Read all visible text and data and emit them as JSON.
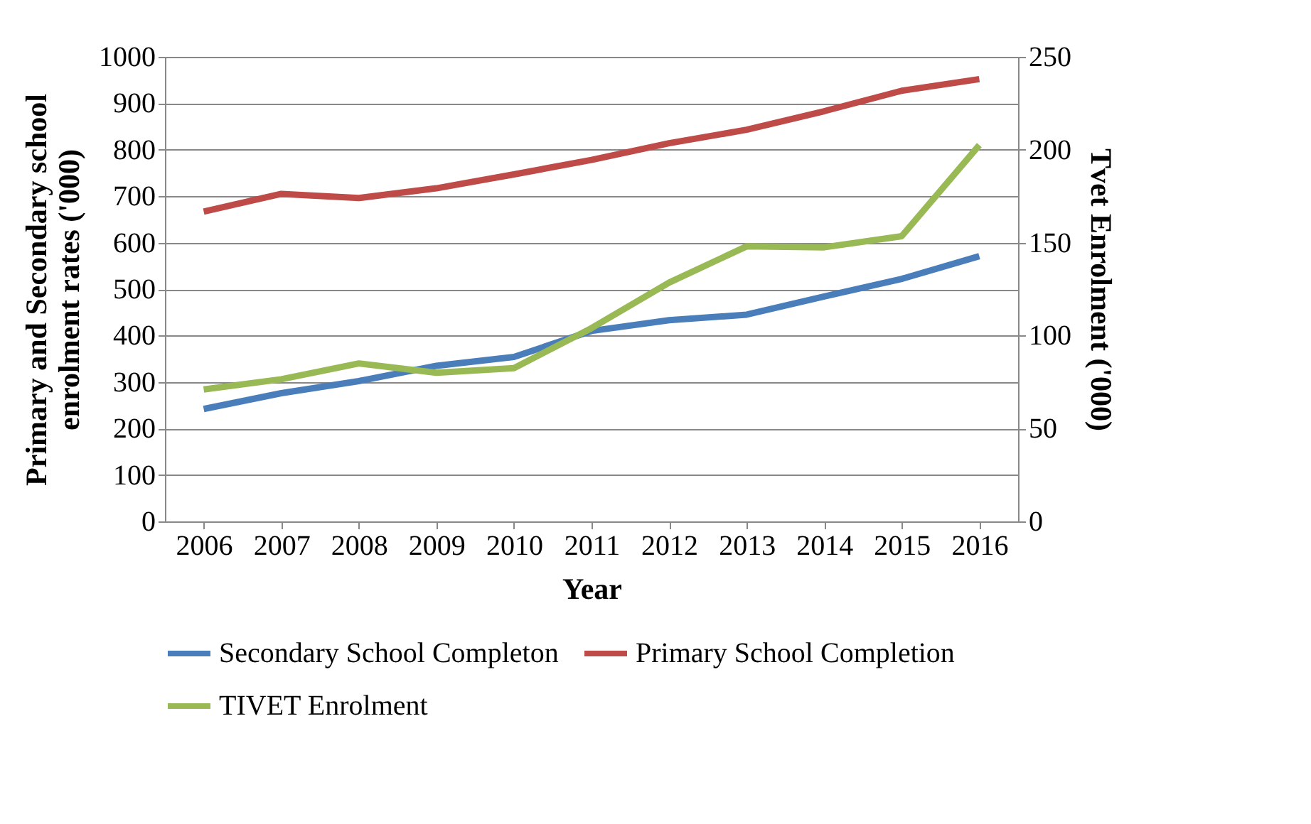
{
  "chart_data": {
    "type": "line",
    "xlabel": "Year",
    "ylabel": "Primary and Secondary school enrolment rates ('000)",
    "y2label": "Tvet Enrolment ('000)",
    "categories": [
      "2006",
      "2007",
      "2008",
      "2009",
      "2010",
      "2011",
      "2012",
      "2013",
      "2014",
      "2015",
      "2016"
    ],
    "series": [
      {
        "name": "Secondary School Completon",
        "color": "#4a7ebb",
        "values": [
          242,
          276,
          302,
          335,
          354,
          410,
          433,
          445,
          484,
          522,
          571
        ]
      },
      {
        "name": "Primary School Completion",
        "color": "#be4b48",
        "values": [
          667,
          705,
          696,
          717,
          747,
          778,
          814,
          843,
          883,
          927,
          952
        ]
      },
      {
        "name": "TIVET Enrolment",
        "color": "#98b954",
        "axis": "y2",
        "values": [
          71,
          76.5,
          85,
          80,
          82.5,
          104,
          128.5,
          148,
          147.5,
          153.5,
          202.5
        ]
      }
    ],
    "ylim": [
      0,
      1000
    ],
    "yticks": [
      0,
      100,
      200,
      300,
      400,
      500,
      600,
      700,
      800,
      900,
      1000
    ],
    "y2lim": [
      0,
      250
    ],
    "y2ticks": [
      0,
      50,
      100,
      150,
      200,
      250
    ],
    "grid": "y",
    "legend": "bottom"
  }
}
